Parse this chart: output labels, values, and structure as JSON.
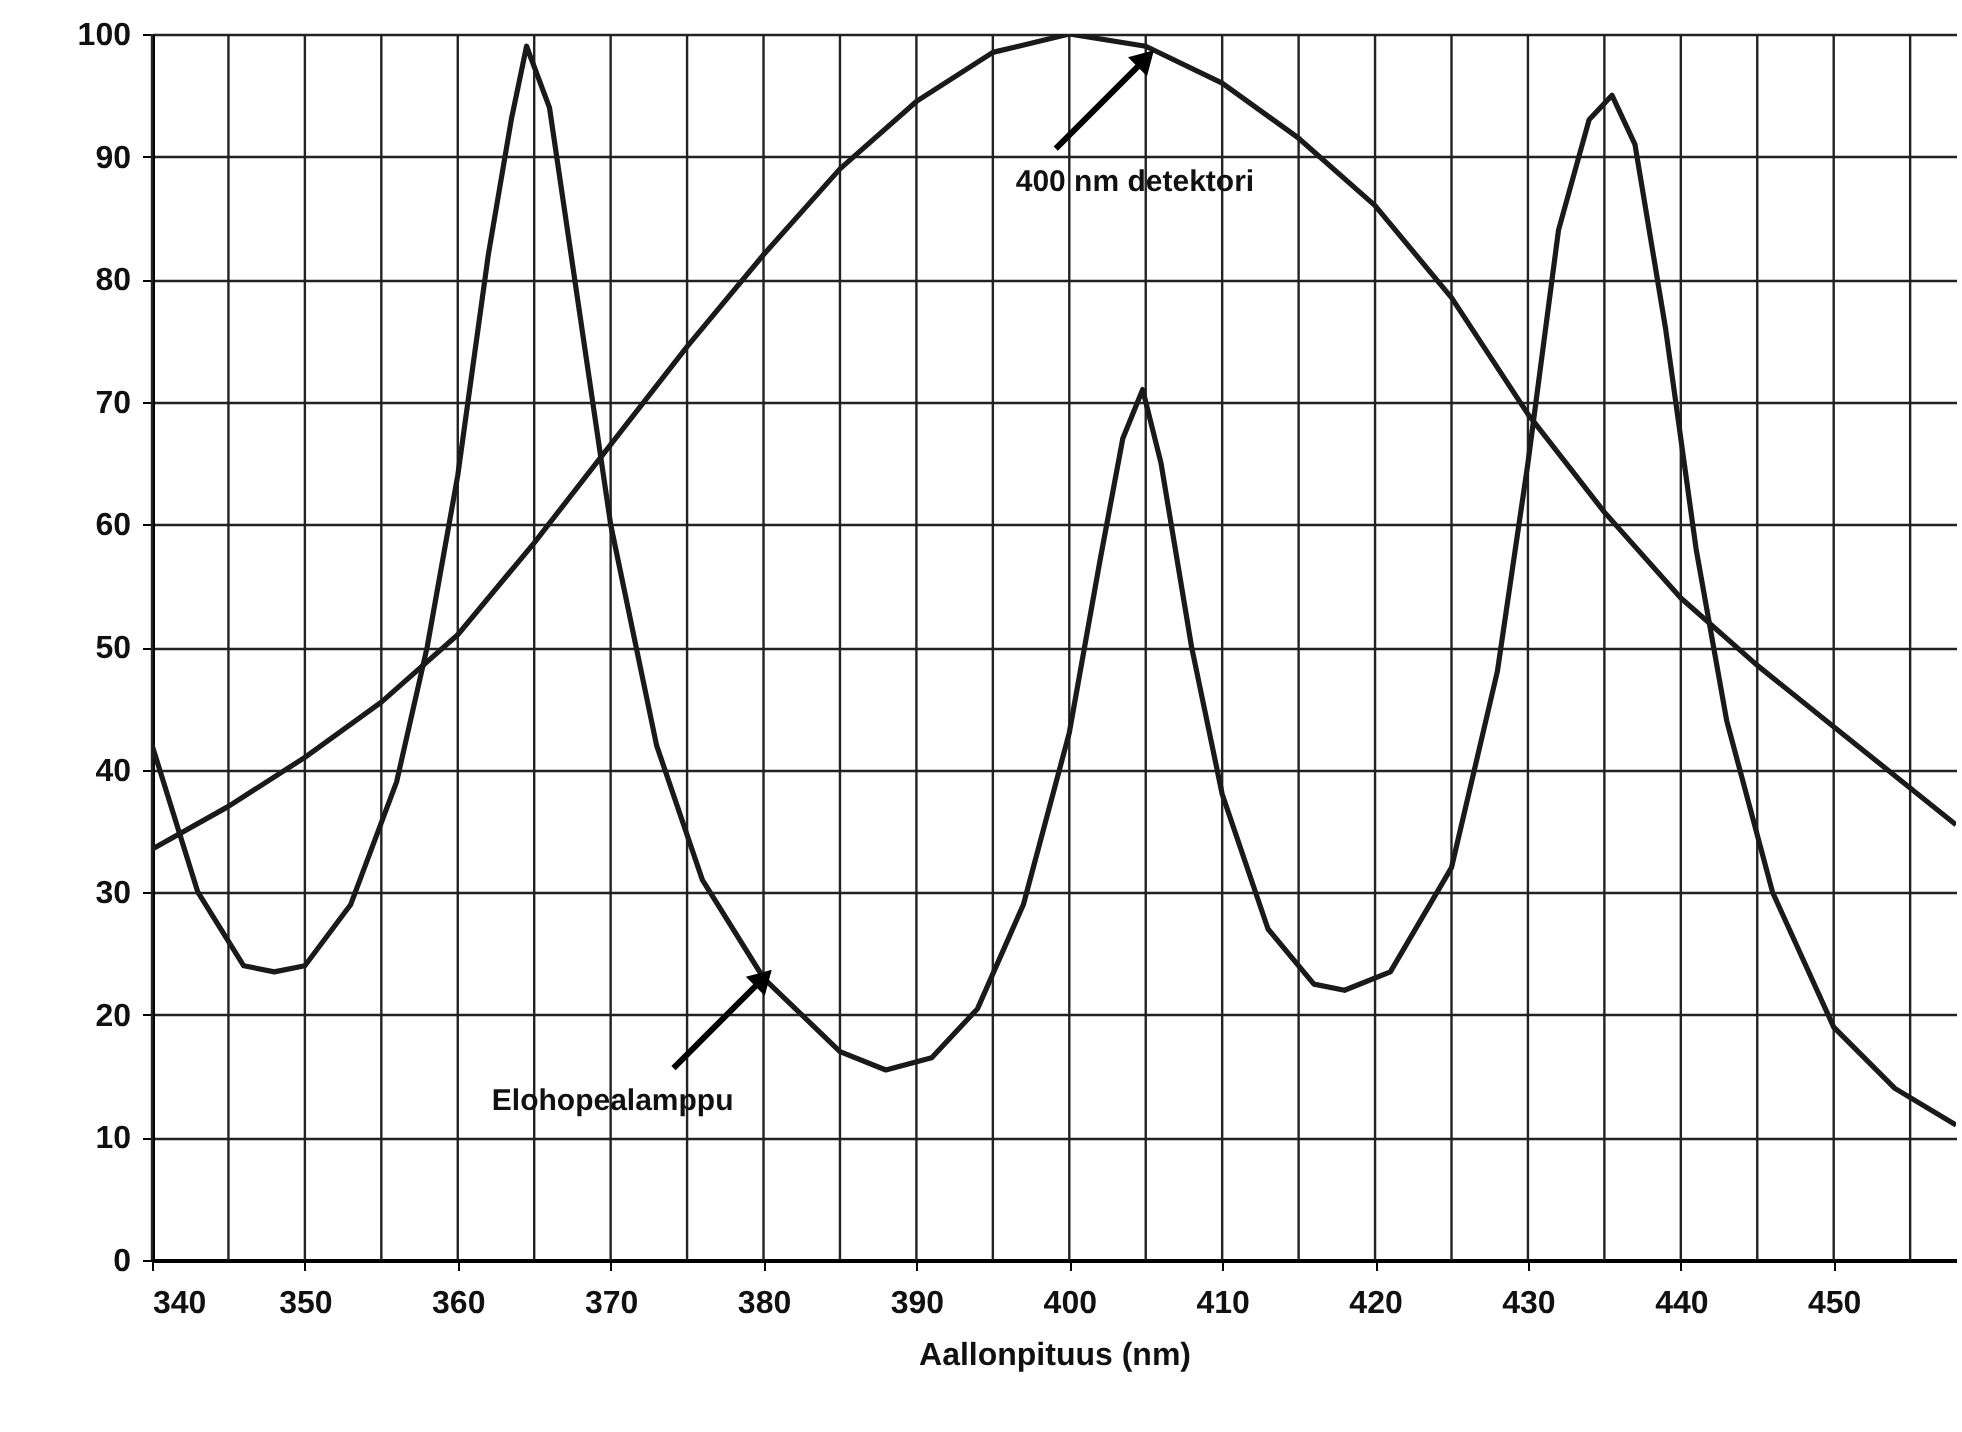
{
  "chart_data": {
    "type": "line",
    "xlabel": "Aallonpituus (nm)",
    "series": [
      {
        "color": "#1a1a1a",
        "x": [
          340,
          345,
          350,
          355,
          360,
          365,
          370,
          375,
          380,
          385,
          390,
          395,
          400,
          405,
          410,
          415,
          420,
          425,
          430,
          435,
          440,
          445,
          450,
          455,
          458
        ],
        "values": [
          33.5,
          37,
          41,
          45.5,
          51,
          58.5,
          66.5,
          74.5,
          82,
          89,
          94.5,
          98.5,
          100,
          99,
          96,
          91.5,
          86,
          78.5,
          69,
          61,
          54,
          48.5,
          43.5,
          38.5,
          35.5
        ]
      },
      {
        "color": "#1a1a1a",
        "x": [
          340,
          343,
          346,
          348,
          350,
          353,
          356,
          358,
          360,
          362,
          363.5,
          364.5,
          366,
          368,
          370,
          373,
          376,
          380,
          385,
          388,
          391,
          394,
          397,
          400,
          402,
          403.5,
          404.8,
          406,
          408,
          410,
          413,
          416,
          418,
          421,
          425,
          428,
          430,
          432,
          434,
          435.5,
          437,
          439,
          441,
          443,
          446,
          450,
          454,
          458
        ],
        "values": [
          42,
          30,
          24,
          23.5,
          24,
          29,
          39,
          50,
          64,
          82,
          93,
          99,
          94,
          77,
          60,
          42,
          31,
          23,
          17,
          15.5,
          16.5,
          20.5,
          29,
          43,
          57,
          67,
          71,
          65,
          50,
          38,
          27,
          22.5,
          22,
          23.5,
          32,
          48,
          65,
          84,
          93,
          95,
          91,
          76,
          58,
          44,
          30,
          19,
          14,
          11
        ]
      }
    ],
    "xlim": [
      340,
      458
    ],
    "ylim": [
      0,
      100
    ],
    "xticks": [
      340,
      {
        "value": 345,
        "label": null
      },
      350,
      {
        "value": 355,
        "label": null
      },
      360,
      {
        "value": 365,
        "label": null
      },
      370,
      {
        "value": 375,
        "label": null
      },
      380,
      {
        "value": 385,
        "label": null
      },
      390,
      {
        "value": 395,
        "label": null
      },
      400,
      {
        "value": 405,
        "label": null
      },
      410,
      {
        "value": 415,
        "label": null
      },
      420,
      {
        "value": 425,
        "label": null
      },
      430,
      {
        "value": 435,
        "label": null
      },
      440,
      {
        "value": 445,
        "label": null
      },
      450,
      {
        "value": 455,
        "label": null
      }
    ],
    "yticks": [
      0,
      10,
      20,
      30,
      40,
      50,
      60,
      70,
      80,
      90,
      100
    ],
    "grid": true,
    "line_style": "solid",
    "annotations": [
      {
        "text": "400 nm detektori",
        "x": 405,
        "y": 98
      },
      {
        "text": "Elohopealamppu",
        "x": 380,
        "y": 23
      }
    ]
  }
}
